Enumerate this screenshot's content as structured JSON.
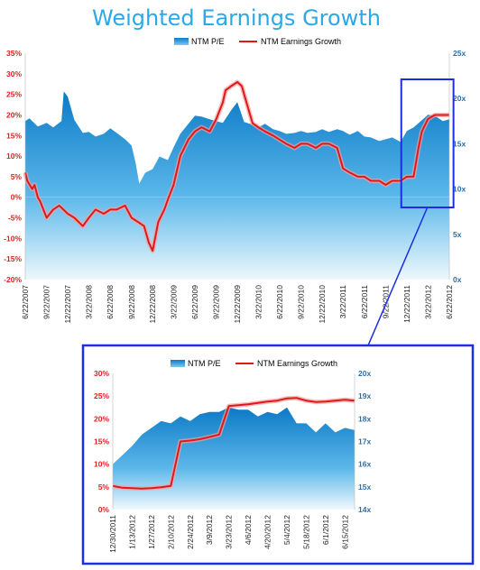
{
  "chart_title": "Weighted Earnings Growth",
  "colors": {
    "pe_fill_dark": "#0c7ac6",
    "pe_fill_light": "#e7f5fc",
    "growth_line": "#e01818",
    "growth_glow": "#f6a0a0",
    "left_axis": "#e02020",
    "right_axis": "#2d6fa7",
    "callout_border": "#1a2ee6",
    "title": "#2aa9e6"
  },
  "chart_data": [
    {
      "type": "area",
      "title": "Weighted Earnings Growth",
      "legend_placement": "top-center",
      "grid": false,
      "series": [
        {
          "name": "NTM P/E",
          "axis": "right",
          "type": "area",
          "x": [
            "2007-06-22",
            "2007-07-10",
            "2007-08-15",
            "2007-09-22",
            "2007-10-20",
            "2007-11-25",
            "2007-12-05",
            "2007-12-22",
            "2008-01-20",
            "2008-02-25",
            "2008-03-22",
            "2008-04-20",
            "2008-05-25",
            "2008-06-22",
            "2008-07-20",
            "2008-08-25",
            "2008-09-22",
            "2008-10-10",
            "2008-10-25",
            "2008-11-20",
            "2008-12-22",
            "2009-01-20",
            "2009-02-25",
            "2009-03-22",
            "2009-04-20",
            "2009-05-25",
            "2009-06-22",
            "2009-07-20",
            "2009-08-25",
            "2009-09-22",
            "2009-10-20",
            "2009-11-25",
            "2009-12-22",
            "2010-01-20",
            "2010-02-25",
            "2010-03-22",
            "2010-04-20",
            "2010-05-25",
            "2010-06-22",
            "2010-07-20",
            "2010-08-25",
            "2010-09-22",
            "2010-10-20",
            "2010-11-25",
            "2010-12-22",
            "2011-01-20",
            "2011-02-25",
            "2011-03-22",
            "2011-04-20",
            "2011-05-25",
            "2011-06-22",
            "2011-07-20",
            "2011-08-25",
            "2011-09-22",
            "2011-10-20",
            "2011-11-25",
            "2011-12-22",
            "2012-01-20",
            "2012-02-25",
            "2012-03-22",
            "2012-04-20",
            "2012-05-25",
            "2012-06-22"
          ],
          "values": [
            17.5,
            17.8,
            16.9,
            17.3,
            16.8,
            17.5,
            20.8,
            20.2,
            17.6,
            16.2,
            16.3,
            15.8,
            16.1,
            16.7,
            16.2,
            15.5,
            14.8,
            12.8,
            10.6,
            11.8,
            12.2,
            13.6,
            13.2,
            14.6,
            16.1,
            17.2,
            18.1,
            18.0,
            17.7,
            17.5,
            17.3,
            18.7,
            19.6,
            17.4,
            17.1,
            16.8,
            17.2,
            16.6,
            16.4,
            16.1,
            16.2,
            16.4,
            16.2,
            16.3,
            16.6,
            16.3,
            16.6,
            16.4,
            16.0,
            16.4,
            15.8,
            15.7,
            15.3,
            15.5,
            15.7,
            15.2,
            16.4,
            16.8,
            17.6,
            18.2,
            18.1,
            17.5,
            17.7
          ]
        },
        {
          "name": "NTM Earnings Growth",
          "axis": "left",
          "type": "line",
          "x": [
            "2007-06-22",
            "2007-07-01",
            "2007-07-22",
            "2007-08-01",
            "2007-08-15",
            "2007-08-25",
            "2007-09-22",
            "2007-10-20",
            "2007-11-15",
            "2007-12-22",
            "2008-01-20",
            "2008-02-25",
            "2008-03-22",
            "2008-04-20",
            "2008-05-25",
            "2008-06-22",
            "2008-07-20",
            "2008-08-25",
            "2008-09-22",
            "2008-10-20",
            "2008-11-15",
            "2008-12-05",
            "2008-12-22",
            "2009-01-15",
            "2009-02-10",
            "2009-03-01",
            "2009-03-22",
            "2009-04-20",
            "2009-05-25",
            "2009-06-22",
            "2009-07-20",
            "2009-08-25",
            "2009-09-22",
            "2009-10-20",
            "2009-11-01",
            "2009-11-25",
            "2009-12-22",
            "2010-01-10",
            "2010-01-25",
            "2010-02-25",
            "2010-03-22",
            "2010-04-20",
            "2010-05-25",
            "2010-06-22",
            "2010-07-20",
            "2010-08-25",
            "2010-09-22",
            "2010-10-20",
            "2010-11-25",
            "2010-12-22",
            "2011-01-20",
            "2011-02-25",
            "2011-03-22",
            "2011-04-20",
            "2011-05-25",
            "2011-06-22",
            "2011-07-20",
            "2011-08-25",
            "2011-09-22",
            "2011-10-20",
            "2011-11-25",
            "2011-12-22",
            "2012-01-20",
            "2012-02-10",
            "2012-02-25",
            "2012-03-22",
            "2012-04-20",
            "2012-05-25",
            "2012-06-22"
          ],
          "values": [
            6,
            4,
            2,
            3,
            0,
            -1,
            -5,
            -3,
            -2,
            -4,
            -5,
            -7,
            -5,
            -3,
            -4,
            -3,
            -3,
            -2,
            -5,
            -6,
            -7,
            -11,
            -13,
            -6,
            -3,
            0,
            3,
            10,
            14,
            16,
            17,
            16,
            19,
            23,
            26,
            27,
            28,
            27,
            24,
            18,
            17,
            16,
            15,
            14,
            13,
            12,
            13,
            13,
            12,
            13,
            13,
            12,
            7,
            6,
            5,
            5,
            4,
            4,
            3,
            4,
            4,
            5,
            5,
            12,
            16,
            19,
            20,
            20,
            20
          ]
        }
      ],
      "ylim_left": [
        -20,
        35
      ],
      "ylim_right": [
        0,
        25
      ],
      "y_ticks_left": [
        "35%",
        "30%",
        "25%",
        "20%",
        "15%",
        "10%",
        "5%",
        "0%",
        "-5%",
        "-10%",
        "-15%",
        "-20%"
      ],
      "y_ticks_right": [
        "25x",
        "20x",
        "15x",
        "10x",
        "5x",
        "0x"
      ],
      "x_ticks": [
        "6/22/2007",
        "9/22/2007",
        "12/22/2007",
        "3/22/2008",
        "6/22/2008",
        "9/22/2008",
        "12/22/2008",
        "3/22/2009",
        "6/22/2009",
        "9/22/2009",
        "12/22/2009",
        "3/22/2010",
        "6/22/2010",
        "9/22/2010",
        "12/22/2010",
        "3/22/2011",
        "6/22/2011",
        "9/22/2011",
        "12/22/2011",
        "3/22/2012",
        "6/22/2012"
      ]
    },
    {
      "type": "area",
      "title": "",
      "legend_placement": "top-center",
      "grid": false,
      "series": [
        {
          "name": "NTM P/E",
          "axis": "right",
          "type": "area",
          "x": [
            "2011-12-30",
            "2012-01-06",
            "2012-01-13",
            "2012-01-20",
            "2012-01-27",
            "2012-02-03",
            "2012-02-10",
            "2012-02-17",
            "2012-02-24",
            "2012-03-02",
            "2012-03-09",
            "2012-03-16",
            "2012-03-23",
            "2012-03-30",
            "2012-04-06",
            "2012-04-13",
            "2012-04-20",
            "2012-04-27",
            "2012-05-04",
            "2012-05-11",
            "2012-05-18",
            "2012-05-25",
            "2012-06-01",
            "2012-06-08",
            "2012-06-15",
            "2012-06-22"
          ],
          "values": [
            16.0,
            16.4,
            16.8,
            17.3,
            17.6,
            17.9,
            17.8,
            18.1,
            17.9,
            18.2,
            18.3,
            18.3,
            18.5,
            18.4,
            18.4,
            18.1,
            18.3,
            18.2,
            18.5,
            17.8,
            17.8,
            17.4,
            17.8,
            17.4,
            17.6,
            17.5
          ]
        },
        {
          "name": "NTM Earnings Growth",
          "axis": "left",
          "type": "line",
          "x": [
            "2011-12-30",
            "2012-01-06",
            "2012-01-13",
            "2012-01-20",
            "2012-01-27",
            "2012-02-03",
            "2012-02-10",
            "2012-02-17",
            "2012-02-24",
            "2012-03-02",
            "2012-03-09",
            "2012-03-16",
            "2012-03-23",
            "2012-03-30",
            "2012-04-06",
            "2012-04-13",
            "2012-04-20",
            "2012-04-27",
            "2012-05-04",
            "2012-05-11",
            "2012-05-18",
            "2012-05-25",
            "2012-06-01",
            "2012-06-08",
            "2012-06-15",
            "2012-06-22"
          ],
          "values": [
            5.2,
            4.8,
            4.7,
            4.6,
            4.7,
            4.9,
            5.2,
            15.0,
            15.2,
            15.5,
            16.0,
            16.5,
            22.8,
            23.0,
            23.2,
            23.5,
            23.8,
            24.0,
            24.5,
            24.6,
            24.0,
            23.7,
            23.8,
            24.0,
            24.2,
            24.0
          ]
        }
      ],
      "ylim_left": [
        0,
        30
      ],
      "ylim_right": [
        14,
        20
      ],
      "y_ticks_left": [
        "30%",
        "25%",
        "20%",
        "15%",
        "10%",
        "5%",
        "0%"
      ],
      "y_ticks_right": [
        "20x",
        "19x",
        "18x",
        "17x",
        "16x",
        "15x",
        "14x"
      ],
      "x_ticks": [
        "12/30/2011",
        "1/13/2012",
        "1/27/2012",
        "2/10/2012",
        "2/24/2012",
        "3/9/2012",
        "3/23/2012",
        "4/6/2012",
        "4/20/2012",
        "5/4/2012",
        "5/18/2012",
        "6/1/2012",
        "6/15/2012"
      ]
    }
  ]
}
